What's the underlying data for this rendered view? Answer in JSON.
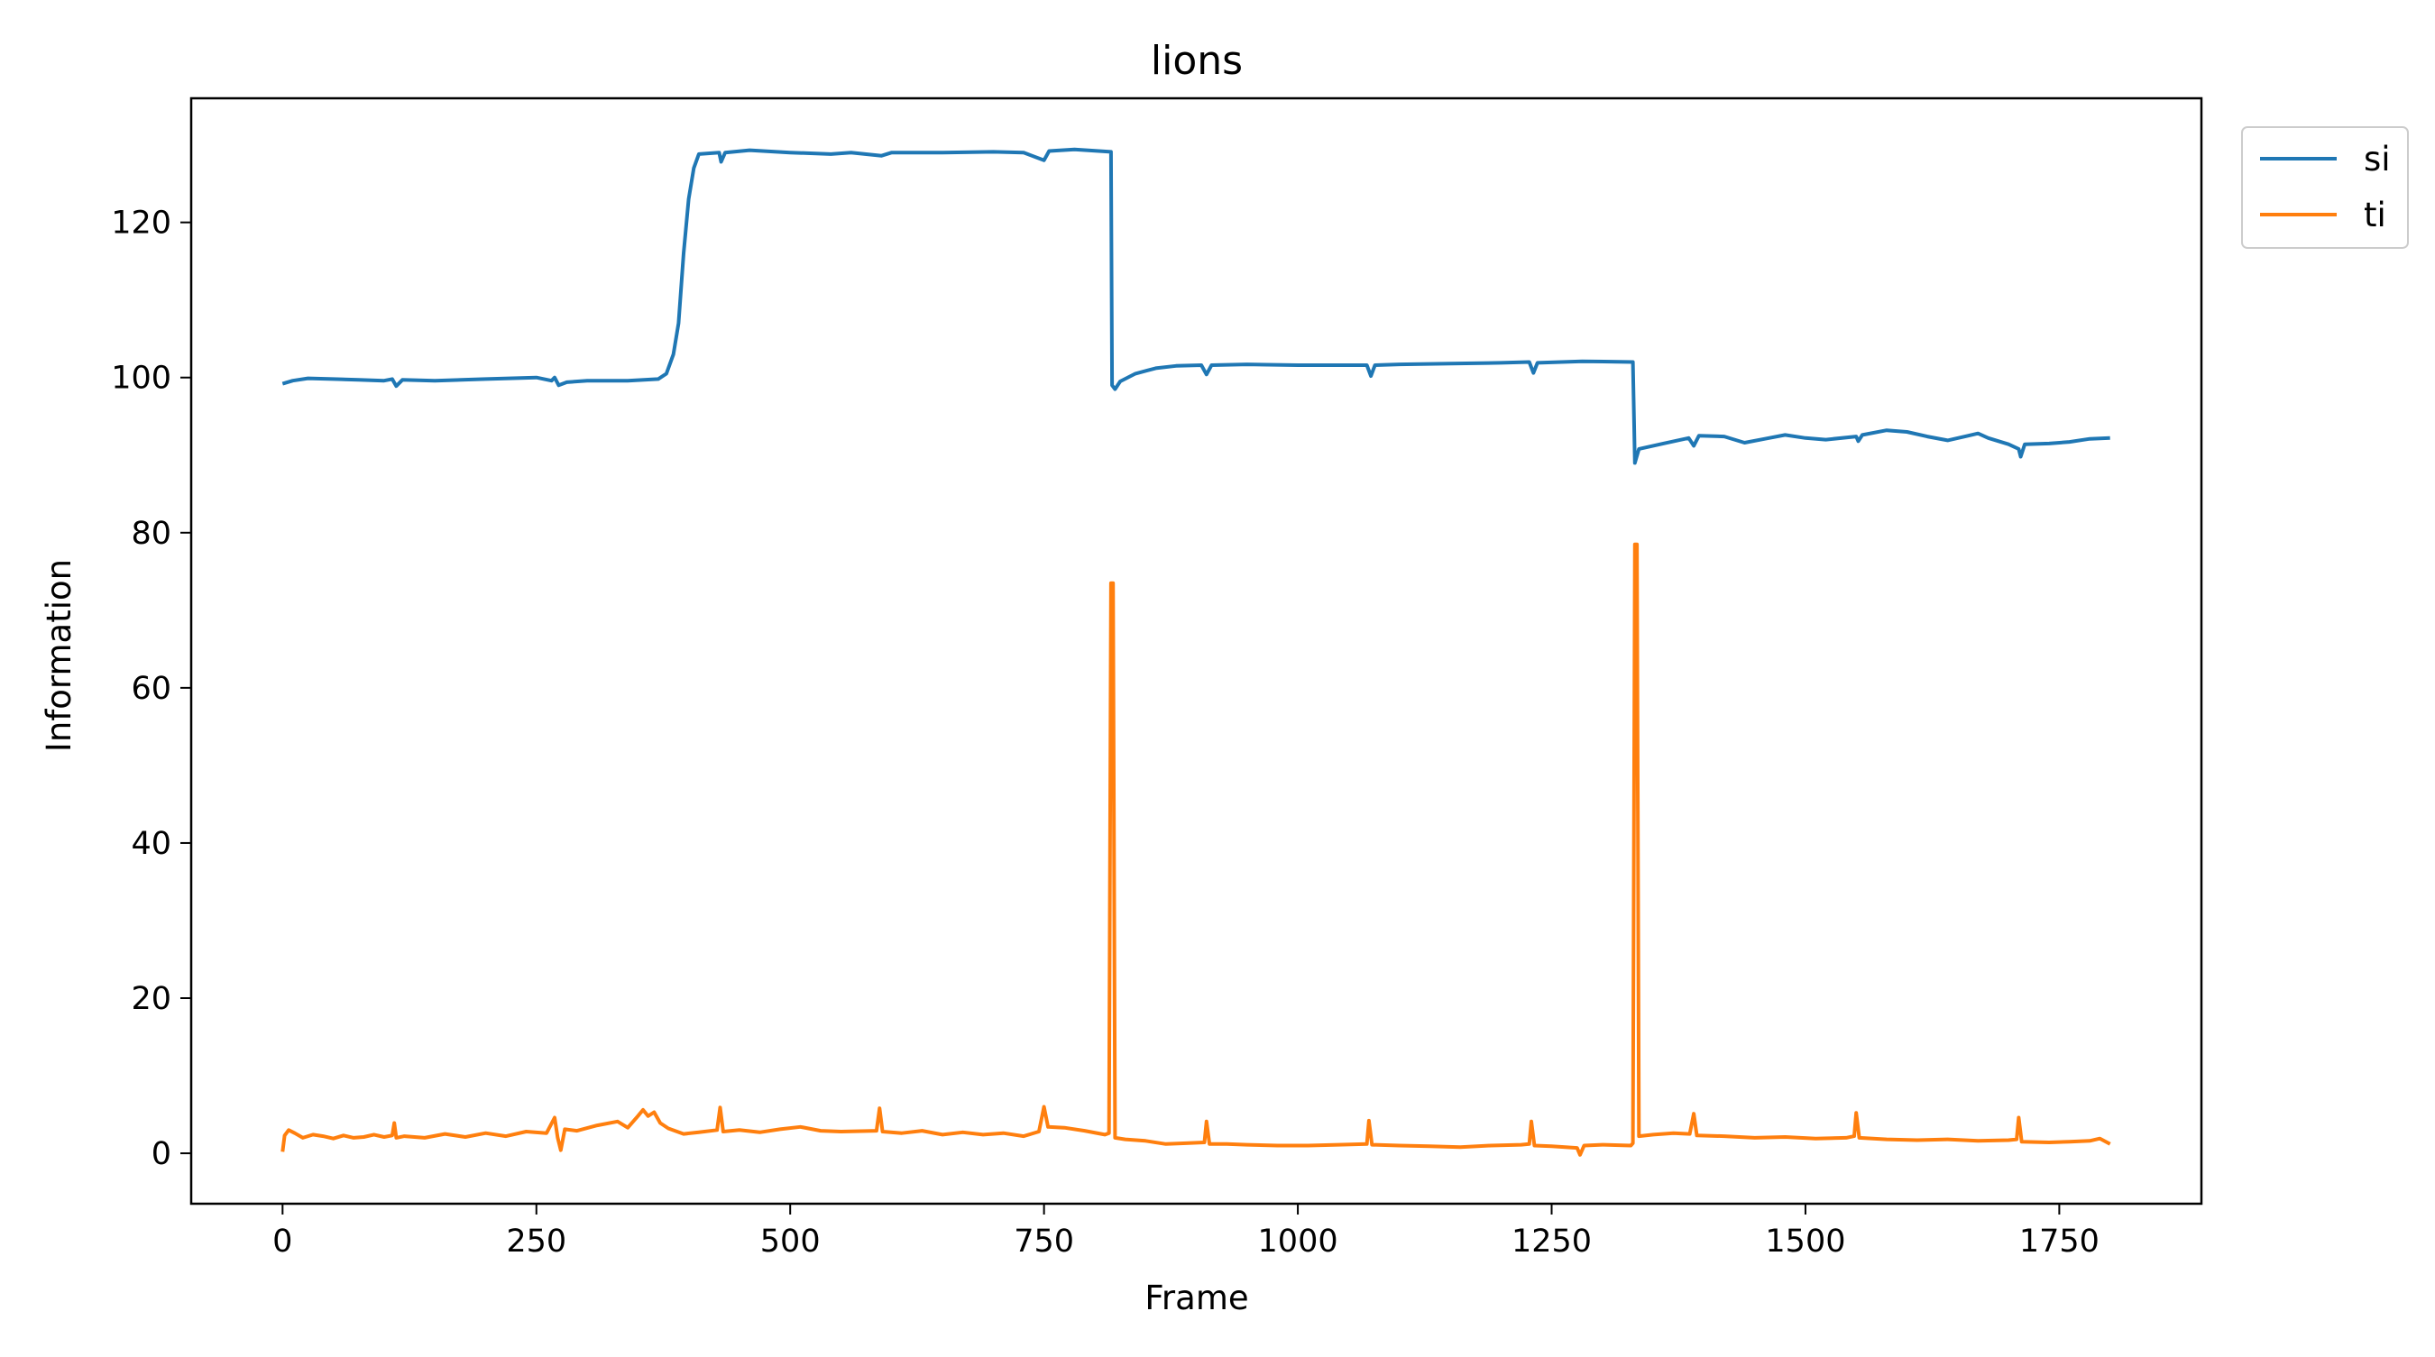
{
  "chart_data": {
    "type": "line",
    "title": "lions",
    "xlabel": "Frame",
    "ylabel": "Information",
    "xlim": [
      -90,
      1890
    ],
    "ylim": [
      -6.5,
      136
    ],
    "x_ticks": [
      0,
      250,
      500,
      750,
      1000,
      1250,
      1500,
      1750
    ],
    "y_ticks": [
      0,
      20,
      40,
      60,
      80,
      100,
      120
    ],
    "grid": false,
    "legend_position": "outside-top-right",
    "series": [
      {
        "name": "si",
        "color": "#1f77b4",
        "points": [
          [
            0,
            99.2
          ],
          [
            10,
            99.6
          ],
          [
            25,
            99.9
          ],
          [
            50,
            99.8
          ],
          [
            75,
            99.7
          ],
          [
            100,
            99.6
          ],
          [
            108,
            99.8
          ],
          [
            112,
            98.9
          ],
          [
            118,
            99.7
          ],
          [
            150,
            99.6
          ],
          [
            200,
            99.8
          ],
          [
            250,
            100.0
          ],
          [
            265,
            99.6
          ],
          [
            268,
            100.0
          ],
          [
            272,
            99.0
          ],
          [
            280,
            99.4
          ],
          [
            300,
            99.6
          ],
          [
            340,
            99.6
          ],
          [
            370,
            99.8
          ],
          [
            378,
            100.5
          ],
          [
            385,
            103.0
          ],
          [
            390,
            107.0
          ],
          [
            395,
            116.0
          ],
          [
            400,
            123.0
          ],
          [
            405,
            127.0
          ],
          [
            410,
            128.8
          ],
          [
            430,
            129.0
          ],
          [
            432,
            127.8
          ],
          [
            436,
            129.0
          ],
          [
            460,
            129.3
          ],
          [
            500,
            129.0
          ],
          [
            540,
            128.8
          ],
          [
            560,
            129.0
          ],
          [
            590,
            128.6
          ],
          [
            600,
            129.0
          ],
          [
            650,
            129.0
          ],
          [
            700,
            129.1
          ],
          [
            730,
            129.0
          ],
          [
            750,
            128.0
          ],
          [
            755,
            129.2
          ],
          [
            780,
            129.4
          ],
          [
            816,
            129.1
          ],
          [
            817,
            99.0
          ],
          [
            820,
            98.5
          ],
          [
            825,
            99.5
          ],
          [
            840,
            100.5
          ],
          [
            860,
            101.2
          ],
          [
            880,
            101.5
          ],
          [
            905,
            101.6
          ],
          [
            910,
            100.4
          ],
          [
            915,
            101.6
          ],
          [
            950,
            101.7
          ],
          [
            1000,
            101.6
          ],
          [
            1050,
            101.6
          ],
          [
            1068,
            101.6
          ],
          [
            1072,
            100.2
          ],
          [
            1076,
            101.6
          ],
          [
            1100,
            101.7
          ],
          [
            1150,
            101.8
          ],
          [
            1200,
            101.9
          ],
          [
            1228,
            102.0
          ],
          [
            1232,
            100.6
          ],
          [
            1236,
            101.9
          ],
          [
            1280,
            102.1
          ],
          [
            1330,
            102.0
          ],
          [
            1332,
            89.0
          ],
          [
            1336,
            90.8
          ],
          [
            1360,
            91.5
          ],
          [
            1385,
            92.2
          ],
          [
            1390,
            91.2
          ],
          [
            1395,
            92.5
          ],
          [
            1420,
            92.4
          ],
          [
            1440,
            91.6
          ],
          [
            1460,
            92.1
          ],
          [
            1480,
            92.6
          ],
          [
            1500,
            92.2
          ],
          [
            1520,
            92.0
          ],
          [
            1550,
            92.4
          ],
          [
            1552,
            91.8
          ],
          [
            1556,
            92.6
          ],
          [
            1580,
            93.2
          ],
          [
            1600,
            93.0
          ],
          [
            1620,
            92.4
          ],
          [
            1640,
            91.9
          ],
          [
            1660,
            92.5
          ],
          [
            1670,
            92.8
          ],
          [
            1680,
            92.2
          ],
          [
            1700,
            91.4
          ],
          [
            1710,
            90.8
          ],
          [
            1712,
            89.8
          ],
          [
            1716,
            91.4
          ],
          [
            1740,
            91.5
          ],
          [
            1760,
            91.7
          ],
          [
            1780,
            92.1
          ],
          [
            1800,
            92.2
          ]
        ]
      },
      {
        "name": "ti",
        "color": "#ff7f0e",
        "points": [
          [
            0,
            0.2
          ],
          [
            2,
            2.3
          ],
          [
            6,
            3.0
          ],
          [
            12,
            2.6
          ],
          [
            20,
            2.0
          ],
          [
            30,
            2.4
          ],
          [
            40,
            2.2
          ],
          [
            50,
            1.9
          ],
          [
            60,
            2.3
          ],
          [
            70,
            2.0
          ],
          [
            80,
            2.1
          ],
          [
            90,
            2.4
          ],
          [
            100,
            2.1
          ],
          [
            108,
            2.3
          ],
          [
            110,
            3.9
          ],
          [
            112,
            2.0
          ],
          [
            120,
            2.2
          ],
          [
            140,
            2.0
          ],
          [
            160,
            2.5
          ],
          [
            180,
            2.1
          ],
          [
            200,
            2.6
          ],
          [
            220,
            2.2
          ],
          [
            240,
            2.8
          ],
          [
            260,
            2.6
          ],
          [
            268,
            4.6
          ],
          [
            271,
            2.0
          ],
          [
            274,
            0.4
          ],
          [
            278,
            3.1
          ],
          [
            290,
            2.9
          ],
          [
            310,
            3.6
          ],
          [
            330,
            4.1
          ],
          [
            340,
            3.3
          ],
          [
            350,
            4.8
          ],
          [
            355,
            5.6
          ],
          [
            360,
            4.8
          ],
          [
            366,
            5.3
          ],
          [
            372,
            3.9
          ],
          [
            380,
            3.2
          ],
          [
            395,
            2.5
          ],
          [
            410,
            2.7
          ],
          [
            428,
            3.0
          ],
          [
            431,
            5.9
          ],
          [
            434,
            2.8
          ],
          [
            450,
            3.0
          ],
          [
            470,
            2.7
          ],
          [
            490,
            3.1
          ],
          [
            510,
            3.4
          ],
          [
            530,
            2.9
          ],
          [
            550,
            2.8
          ],
          [
            585,
            2.9
          ],
          [
            588,
            5.8
          ],
          [
            591,
            2.8
          ],
          [
            610,
            2.6
          ],
          [
            630,
            2.9
          ],
          [
            650,
            2.4
          ],
          [
            670,
            2.7
          ],
          [
            690,
            2.4
          ],
          [
            710,
            2.6
          ],
          [
            730,
            2.2
          ],
          [
            745,
            2.8
          ],
          [
            750,
            6.0
          ],
          [
            754,
            3.4
          ],
          [
            770,
            3.3
          ],
          [
            790,
            2.9
          ],
          [
            810,
            2.4
          ],
          [
            814,
            2.6
          ],
          [
            816,
            73.5
          ],
          [
            818,
            73.5
          ],
          [
            820,
            2.0
          ],
          [
            830,
            1.8
          ],
          [
            850,
            1.6
          ],
          [
            870,
            1.2
          ],
          [
            890,
            1.3
          ],
          [
            908,
            1.4
          ],
          [
            910,
            4.1
          ],
          [
            913,
            1.2
          ],
          [
            930,
            1.2
          ],
          [
            950,
            1.1
          ],
          [
            980,
            1.0
          ],
          [
            1010,
            1.0
          ],
          [
            1040,
            1.1
          ],
          [
            1068,
            1.2
          ],
          [
            1070,
            4.2
          ],
          [
            1073,
            1.1
          ],
          [
            1100,
            1.0
          ],
          [
            1130,
            0.9
          ],
          [
            1160,
            0.8
          ],
          [
            1190,
            1.0
          ],
          [
            1220,
            1.1
          ],
          [
            1228,
            1.2
          ],
          [
            1230,
            4.1
          ],
          [
            1233,
            1.0
          ],
          [
            1250,
            0.9
          ],
          [
            1275,
            0.7
          ],
          [
            1278,
            -0.2
          ],
          [
            1282,
            1.0
          ],
          [
            1300,
            1.1
          ],
          [
            1328,
            1.0
          ],
          [
            1330,
            1.3
          ],
          [
            1332,
            78.5
          ],
          [
            1334,
            78.5
          ],
          [
            1336,
            2.2
          ],
          [
            1350,
            2.4
          ],
          [
            1370,
            2.6
          ],
          [
            1386,
            2.5
          ],
          [
            1390,
            5.1
          ],
          [
            1393,
            2.3
          ],
          [
            1420,
            2.2
          ],
          [
            1450,
            2.0
          ],
          [
            1480,
            2.1
          ],
          [
            1510,
            1.9
          ],
          [
            1540,
            2.0
          ],
          [
            1548,
            2.2
          ],
          [
            1550,
            5.2
          ],
          [
            1553,
            2.0
          ],
          [
            1580,
            1.8
          ],
          [
            1610,
            1.7
          ],
          [
            1640,
            1.8
          ],
          [
            1670,
            1.6
          ],
          [
            1700,
            1.7
          ],
          [
            1708,
            1.8
          ],
          [
            1710,
            4.6
          ],
          [
            1713,
            1.5
          ],
          [
            1740,
            1.4
          ],
          [
            1760,
            1.5
          ],
          [
            1780,
            1.6
          ],
          [
            1790,
            1.9
          ],
          [
            1800,
            1.2
          ]
        ]
      }
    ]
  }
}
